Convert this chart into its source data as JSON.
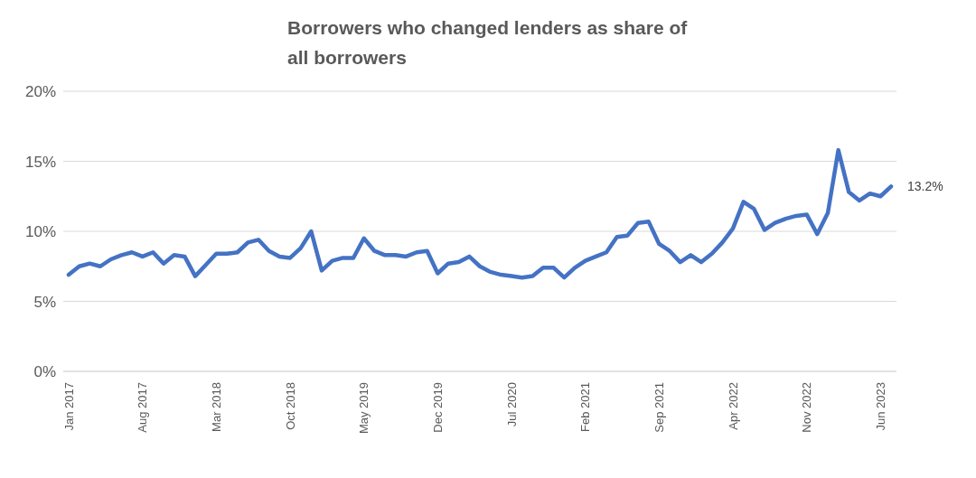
{
  "chart_data": {
    "type": "line",
    "title": "Borrowers who changed lenders as share of all borrowers",
    "categories": [
      "Jan 2017",
      null,
      null,
      null,
      null,
      null,
      null,
      "Aug 2017",
      null,
      null,
      null,
      null,
      null,
      null,
      "Mar 2018",
      null,
      null,
      null,
      null,
      null,
      null,
      "Oct 2018",
      null,
      null,
      null,
      null,
      null,
      null,
      "May 2019",
      null,
      null,
      null,
      null,
      null,
      null,
      "Dec 2019",
      null,
      null,
      null,
      null,
      null,
      null,
      "Jul 2020",
      null,
      null,
      null,
      null,
      null,
      null,
      "Feb 2021",
      null,
      null,
      null,
      null,
      null,
      null,
      "Sep 2021",
      null,
      null,
      null,
      null,
      null,
      null,
      "Apr 2022",
      null,
      null,
      null,
      null,
      null,
      null,
      "Nov 2022",
      null,
      null,
      null,
      null,
      null,
      null,
      "Jun 2023",
      null
    ],
    "series": [
      {
        "color": "#4472c4",
        "values": [
          6.9,
          7.5,
          7.7,
          7.5,
          8.0,
          8.3,
          8.5,
          8.2,
          8.5,
          7.7,
          8.3,
          8.2,
          6.8,
          7.6,
          8.4,
          8.4,
          8.5,
          9.2,
          9.4,
          8.6,
          8.2,
          8.1,
          8.8,
          10.0,
          7.2,
          7.9,
          8.1,
          8.1,
          9.5,
          8.6,
          8.3,
          8.3,
          8.2,
          8.5,
          8.6,
          7.0,
          7.7,
          7.8,
          8.2,
          7.5,
          7.1,
          6.9,
          6.8,
          6.7,
          6.8,
          7.4,
          7.4,
          6.7,
          7.4,
          7.9,
          8.2,
          8.5,
          9.6,
          9.7,
          10.6,
          10.7,
          9.1,
          8.6,
          7.8,
          8.3,
          7.8,
          8.4,
          9.2,
          10.2,
          12.1,
          11.6,
          10.1,
          10.6,
          10.9,
          11.1,
          11.2,
          9.8,
          11.3,
          15.8,
          12.8,
          12.2,
          12.7,
          12.5,
          13.2
        ],
        "value_labels": [
          null,
          null,
          null,
          null,
          null,
          null,
          null,
          null,
          null,
          null,
          null,
          null,
          null,
          null,
          null,
          null,
          null,
          null,
          null,
          null,
          null,
          null,
          null,
          null,
          null,
          null,
          null,
          null,
          null,
          null,
          null,
          null,
          null,
          null,
          null,
          null,
          null,
          null,
          null,
          null,
          null,
          null,
          null,
          null,
          null,
          null,
          null,
          null,
          null,
          null,
          null,
          null,
          null,
          null,
          null,
          null,
          null,
          null,
          null,
          null,
          null,
          null,
          null,
          null,
          null,
          null,
          null,
          null,
          null,
          null,
          null,
          null,
          null,
          null,
          null,
          null,
          null,
          null,
          "13.2%"
        ]
      }
    ],
    "ylim": [
      0,
      20
    ],
    "yticks": [
      {
        "value": 0,
        "label": "0%"
      },
      {
        "value": 5,
        "label": "5%"
      },
      {
        "value": 10,
        "label": "10%"
      },
      {
        "value": 15,
        "label": "15%"
      },
      {
        "value": 20,
        "label": "20%"
      }
    ],
    "grid": "y",
    "marker": "none",
    "line_style": "solid"
  }
}
